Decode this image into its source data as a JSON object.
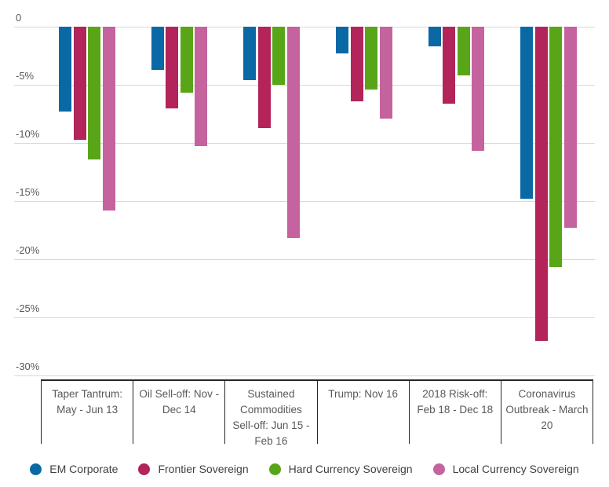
{
  "chart_data": {
    "type": "bar",
    "title": "",
    "orientation": "vertical-negative-bars",
    "categories": [
      "Taper Tantrum: May - Jun 13",
      "Oil Sell-off: Nov - Dec 14",
      "Sustained Commodities Sell-off: Jun 15 - Feb 16",
      "Trump: Nov 16",
      "2018 Risk-off: Feb 18 - Dec 18",
      "Coronavirus Outbreak - March 20"
    ],
    "series": [
      {
        "name": "EM Corporate",
        "color": "#0a68a5",
        "values": [
          -7.3,
          -3.7,
          -4.6,
          -2.3,
          -1.7,
          -14.8
        ]
      },
      {
        "name": "Frontier Sovereign",
        "color": "#b2245a",
        "values": [
          -9.7,
          -7.0,
          -8.7,
          -6.4,
          -6.6,
          -27.0
        ]
      },
      {
        "name": "Hard Currency Sovereign",
        "color": "#58a618",
        "values": [
          -11.4,
          -5.7,
          -5.0,
          -5.4,
          -4.2,
          -20.7
        ]
      },
      {
        "name": "Local Currency Sovereign",
        "color": "#c5639e",
        "values": [
          -15.8,
          -10.3,
          -18.2,
          -7.9,
          -10.7,
          -17.3
        ]
      }
    ],
    "y_axis": {
      "tick_labels": [
        "0",
        "-5%",
        "-10%",
        "-15%",
        "-20%",
        "-25%",
        "-30%"
      ],
      "tick_values": [
        0,
        -5,
        -10,
        -15,
        -20,
        -25,
        -30
      ],
      "max": 0,
      "min": -30,
      "unit": "%"
    },
    "xlabel": "",
    "ylabel": "",
    "grid": "horizontal",
    "legend_position": "bottom"
  },
  "colors": {
    "background": "#ffffff",
    "gridline": "#d9d9d9",
    "axis_line": "#262626",
    "tick_text": "#595959",
    "category_text": "#595959",
    "legend_text": "#404040"
  }
}
